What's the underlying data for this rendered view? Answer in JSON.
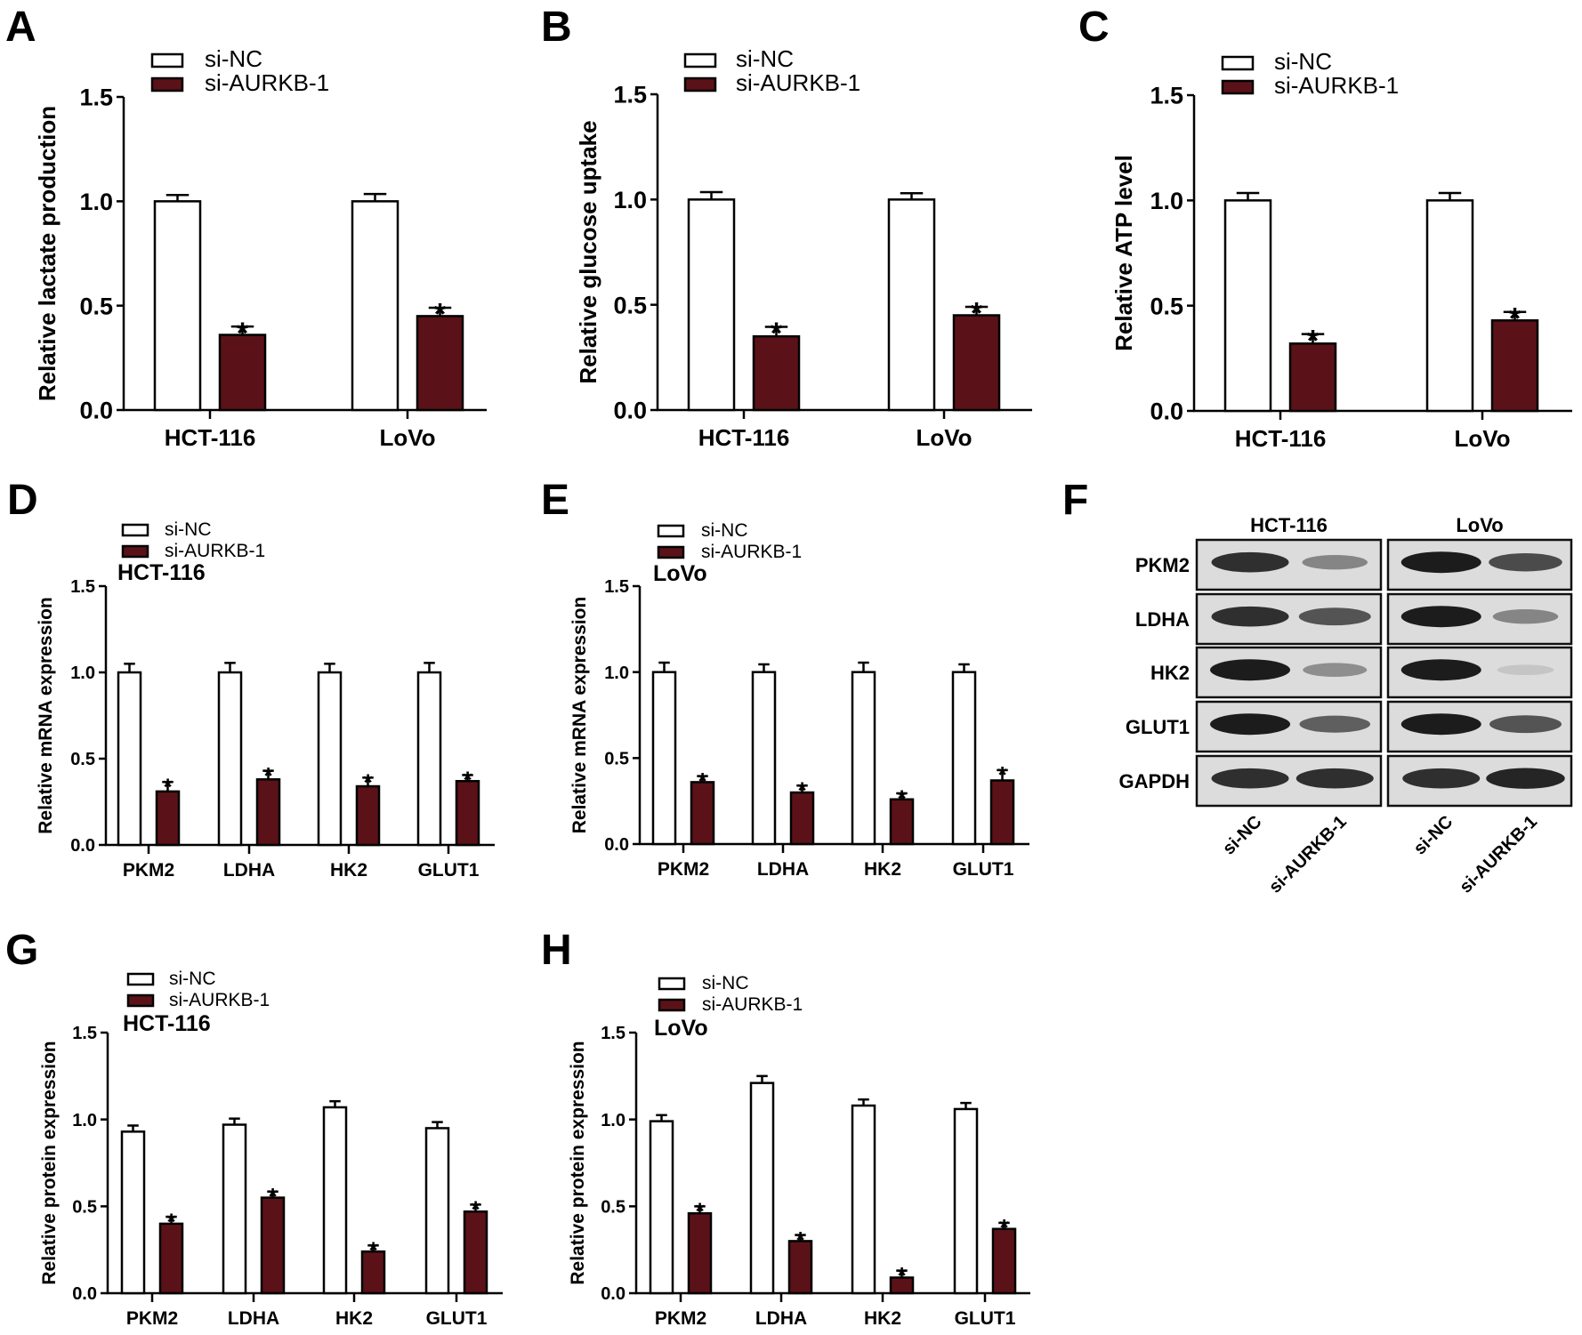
{
  "colors": {
    "control_fill": "#ffffff",
    "knockdown_fill": "#5a1218",
    "stroke": "#000000",
    "blot_background": "#dcdcdc",
    "band": "#111111"
  },
  "legend": {
    "items": [
      {
        "label": "si-NC",
        "series": "control"
      },
      {
        "label": "si-AURKB-1",
        "series": "knockdown"
      }
    ]
  },
  "significance_marker": "*",
  "chart_data": [
    {
      "panel": "A",
      "type": "bar",
      "title": "",
      "subtitle": "",
      "ylabel": "Relative lactate production",
      "xlabel": "",
      "ylim": [
        0,
        1.5
      ],
      "yticks": [
        "0.0",
        "0.5",
        "1.0",
        "1.5"
      ],
      "categories": [
        "HCT-116",
        "LoVo"
      ],
      "series": [
        {
          "name": "si-NC",
          "values": [
            1.0,
            1.0
          ],
          "errors": [
            0.03,
            0.035
          ],
          "significant": [
            false,
            false
          ]
        },
        {
          "name": "si-AURKB-1",
          "values": [
            0.36,
            0.45
          ],
          "errors": [
            0.04,
            0.04
          ],
          "significant": [
            true,
            true
          ]
        }
      ],
      "legend_position": "top-left",
      "grid": false
    },
    {
      "panel": "B",
      "type": "bar",
      "title": "",
      "subtitle": "",
      "ylabel": "Relative glucose uptake",
      "xlabel": "",
      "ylim": [
        0,
        1.5
      ],
      "yticks": [
        "0.0",
        "0.5",
        "1.0",
        "1.5"
      ],
      "categories": [
        "HCT-116",
        "LoVo"
      ],
      "series": [
        {
          "name": "si-NC",
          "values": [
            1.0,
            1.0
          ],
          "errors": [
            0.035,
            0.03
          ],
          "significant": [
            false,
            false
          ]
        },
        {
          "name": "si-AURKB-1",
          "values": [
            0.35,
            0.45
          ],
          "errors": [
            0.045,
            0.04
          ],
          "significant": [
            true,
            true
          ]
        }
      ],
      "legend_position": "top-left",
      "grid": false
    },
    {
      "panel": "C",
      "type": "bar",
      "title": "",
      "subtitle": "",
      "ylabel": "Relative ATP level",
      "xlabel": "",
      "ylim": [
        0,
        1.5
      ],
      "yticks": [
        "0.0",
        "0.5",
        "1.0",
        "1.5"
      ],
      "categories": [
        "HCT-116",
        "LoVo"
      ],
      "series": [
        {
          "name": "si-NC",
          "values": [
            1.0,
            1.0
          ],
          "errors": [
            0.035,
            0.035
          ],
          "significant": [
            false,
            false
          ]
        },
        {
          "name": "si-AURKB-1",
          "values": [
            0.32,
            0.43
          ],
          "errors": [
            0.045,
            0.04
          ],
          "significant": [
            true,
            true
          ]
        }
      ],
      "legend_position": "top-left",
      "grid": false
    },
    {
      "panel": "D",
      "type": "bar",
      "title": "",
      "subtitle": "HCT-116",
      "ylabel": "Relative mRNA expression",
      "xlabel": "",
      "ylim": [
        0,
        1.5
      ],
      "yticks": [
        "0.0",
        "0.5",
        "1.0",
        "1.5"
      ],
      "categories": [
        "PKM2",
        "LDHA",
        "HK2",
        "GLUT1"
      ],
      "series": [
        {
          "name": "si-NC",
          "values": [
            1.0,
            1.0,
            1.0,
            1.0
          ],
          "errors": [
            0.05,
            0.055,
            0.05,
            0.055
          ],
          "significant": [
            false,
            false,
            false,
            false
          ]
        },
        {
          "name": "si-AURKB-1",
          "values": [
            0.31,
            0.38,
            0.34,
            0.37
          ],
          "errors": [
            0.055,
            0.05,
            0.05,
            0.035
          ],
          "significant": [
            true,
            true,
            true,
            true
          ]
        }
      ],
      "legend_position": "top-left",
      "grid": false
    },
    {
      "panel": "E",
      "type": "bar",
      "title": "",
      "subtitle": "LoVo",
      "ylabel": "Relative mRNA expression",
      "xlabel": "",
      "ylim": [
        0,
        1.5
      ],
      "yticks": [
        "0.0",
        "0.5",
        "1.0",
        "1.5"
      ],
      "categories": [
        "PKM2",
        "LDHA",
        "HK2",
        "GLUT1"
      ],
      "series": [
        {
          "name": "si-NC",
          "values": [
            1.0,
            1.0,
            1.0,
            1.0
          ],
          "errors": [
            0.055,
            0.045,
            0.055,
            0.045
          ],
          "significant": [
            false,
            false,
            false,
            false
          ]
        },
        {
          "name": "si-AURKB-1",
          "values": [
            0.36,
            0.3,
            0.26,
            0.37
          ],
          "errors": [
            0.035,
            0.04,
            0.035,
            0.06
          ],
          "significant": [
            true,
            true,
            true,
            true
          ]
        }
      ],
      "legend_position": "top-left",
      "grid": false
    },
    {
      "panel": "G",
      "type": "bar",
      "title": "",
      "subtitle": "HCT-116",
      "ylabel": "Relative protein expression",
      "xlabel": "",
      "ylim": [
        0,
        1.5
      ],
      "yticks": [
        "0.0",
        "0.5",
        "1.0",
        "1.5"
      ],
      "categories": [
        "PKM2",
        "LDHA",
        "HK2",
        "GLUT1"
      ],
      "series": [
        {
          "name": "si-NC",
          "values": [
            0.93,
            0.97,
            1.07,
            0.95
          ],
          "errors": [
            0.035,
            0.035,
            0.035,
            0.035
          ],
          "significant": [
            false,
            false,
            false,
            false
          ]
        },
        {
          "name": "si-AURKB-1",
          "values": [
            0.4,
            0.55,
            0.24,
            0.47
          ],
          "errors": [
            0.04,
            0.035,
            0.035,
            0.04
          ],
          "significant": [
            true,
            true,
            true,
            true
          ]
        }
      ],
      "legend_position": "top-left",
      "grid": false
    },
    {
      "panel": "H",
      "type": "bar",
      "title": "",
      "subtitle": "LoVo",
      "ylabel": "Relative protein expression",
      "xlabel": "",
      "ylim": [
        0,
        1.5
      ],
      "yticks": [
        "0.0",
        "0.5",
        "1.0",
        "1.5"
      ],
      "categories": [
        "PKM2",
        "LDHA",
        "HK2",
        "GLUT1"
      ],
      "series": [
        {
          "name": "si-NC",
          "values": [
            0.99,
            1.21,
            1.08,
            1.06
          ],
          "errors": [
            0.035,
            0.04,
            0.035,
            0.035
          ],
          "significant": [
            false,
            false,
            false,
            false
          ]
        },
        {
          "name": "si-AURKB-1",
          "values": [
            0.46,
            0.3,
            0.09,
            0.37
          ],
          "errors": [
            0.04,
            0.035,
            0.04,
            0.035
          ],
          "significant": [
            true,
            true,
            true,
            true
          ]
        }
      ],
      "legend_position": "top-left",
      "grid": false
    }
  ],
  "western_blot": {
    "panel": "F",
    "cell_lines": [
      "HCT-116",
      "LoVo"
    ],
    "proteins": [
      "PKM2",
      "LDHA",
      "HK2",
      "GLUT1",
      "GAPDH"
    ],
    "lanes": [
      "si-NC",
      "si-AURKB-1"
    ],
    "band_intensity": {
      "HCT-116": [
        [
          0.9,
          0.45
        ],
        [
          0.9,
          0.7
        ],
        [
          1.0,
          0.4
        ],
        [
          1.0,
          0.65
        ],
        [
          0.9,
          0.9
        ]
      ],
      "LoVo": [
        [
          1.0,
          0.75
        ],
        [
          1.0,
          0.45
        ],
        [
          1.0,
          0.12
        ],
        [
          1.0,
          0.7
        ],
        [
          0.9,
          0.95
        ]
      ]
    }
  }
}
